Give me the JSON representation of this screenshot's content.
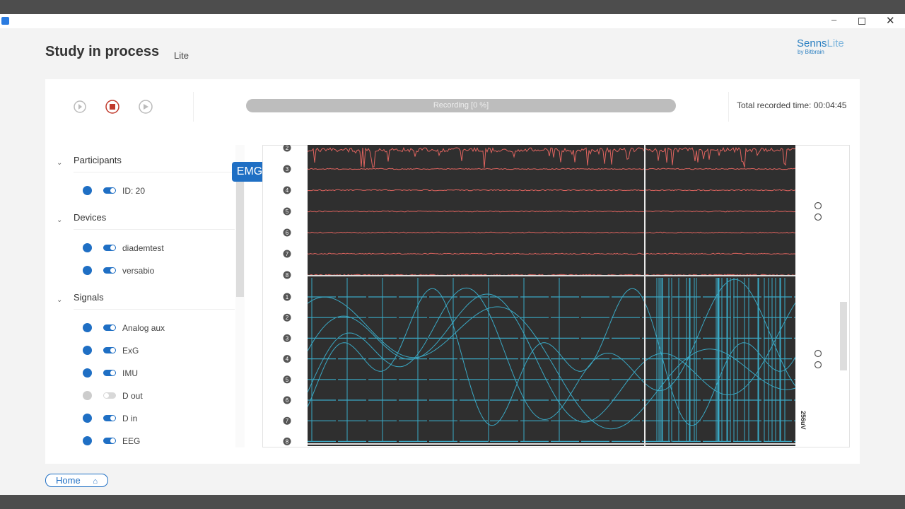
{
  "header": {
    "title": "Study in process",
    "edition": "Lite",
    "brand": {
      "name": "Senns",
      "suffix": "Lite",
      "byline": "by Bitbrain"
    }
  },
  "toolbar": {
    "progress": "Recording [0 %]",
    "total_label": "Total recorded time:",
    "total_time": "00:04:45"
  },
  "sidebar": {
    "sections": [
      {
        "title": "Participants",
        "items": [
          {
            "label": "ID: 20",
            "enabled": true
          }
        ]
      },
      {
        "title": "Devices",
        "items": [
          {
            "label": "diademtest",
            "enabled": true
          },
          {
            "label": "versabio",
            "enabled": true
          }
        ]
      },
      {
        "title": "Signals",
        "items": [
          {
            "label": "Analog aux",
            "enabled": true
          },
          {
            "label": "ExG",
            "enabled": true
          },
          {
            "label": "IMU",
            "enabled": true
          },
          {
            "label": "D out",
            "enabled": false
          },
          {
            "label": "D in",
            "enabled": true
          },
          {
            "label": "EEG",
            "enabled": true
          }
        ]
      }
    ]
  },
  "plot": {
    "signal": "EMG",
    "top_channels": [
      "2",
      "3",
      "4",
      "5",
      "6",
      "7",
      "8"
    ],
    "bottom_channels": [
      "1",
      "2",
      "3",
      "4",
      "5",
      "6",
      "7",
      "8"
    ],
    "scale": "256uV"
  },
  "footer": {
    "home": "Home"
  }
}
